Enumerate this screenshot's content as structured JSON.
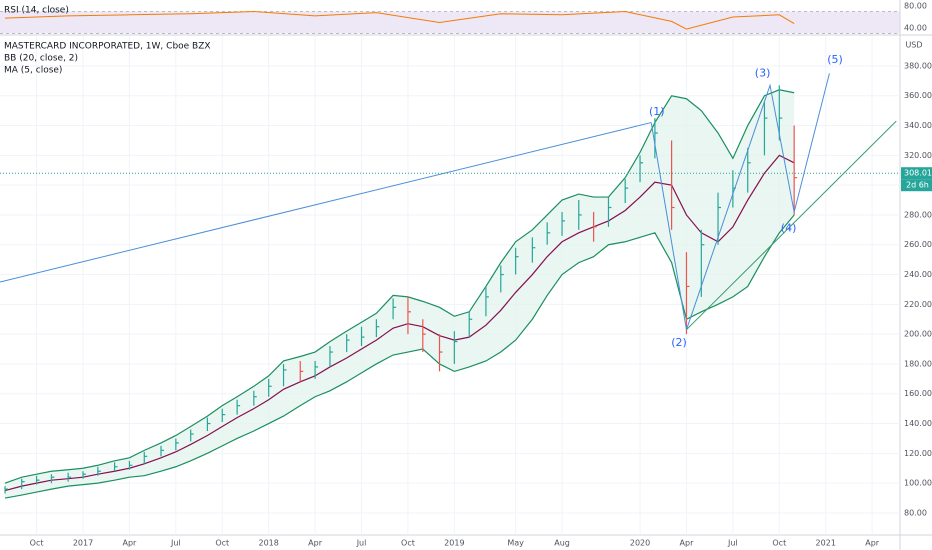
{
  "chart_data": [
    {
      "type": "ohlc",
      "title": "MASTERCARD INCORPORATED, 1W, Cboe BZX",
      "indicators": [
        "BB (20, close, 2)",
        "MA (5, close)"
      ],
      "currency": "USD",
      "x": [
        2016.58,
        2016.67,
        2016.75,
        2016.83,
        2016.92,
        2017.0,
        2017.08,
        2017.17,
        2017.25,
        2017.33,
        2017.42,
        2017.5,
        2017.58,
        2017.67,
        2017.75,
        2017.83,
        2017.92,
        2018.0,
        2018.08,
        2018.17,
        2018.25,
        2018.33,
        2018.42,
        2018.5,
        2018.58,
        2018.67,
        2018.75,
        2018.83,
        2018.92,
        2019.0,
        2019.08,
        2019.17,
        2019.25,
        2019.33,
        2019.42,
        2019.5,
        2019.58,
        2019.67,
        2019.75,
        2019.83,
        2019.92,
        2020.0,
        2020.08,
        2020.17,
        2020.25,
        2020.33,
        2020.42,
        2020.5,
        2020.58,
        2020.67,
        2020.75,
        2020.83
      ],
      "close": [
        96,
        101,
        102,
        104,
        104,
        106,
        108,
        111,
        112,
        118,
        122,
        127,
        133,
        140,
        146,
        152,
        158,
        165,
        176,
        175,
        178,
        188,
        196,
        198,
        205,
        218,
        215,
        200,
        188,
        195,
        210,
        225,
        240,
        252,
        258,
        268,
        276,
        280,
        272,
        285,
        298,
        315,
        335,
        285,
        232,
        260,
        285,
        298,
        315,
        345,
        345,
        305
      ],
      "high": [
        98,
        103,
        105,
        106,
        107,
        108,
        111,
        114,
        115,
        121,
        125,
        130,
        136,
        144,
        150,
        156,
        162,
        170,
        180,
        182,
        182,
        192,
        200,
        205,
        210,
        224,
        225,
        210,
        200,
        202,
        215,
        232,
        246,
        258,
        265,
        275,
        282,
        290,
        282,
        292,
        304,
        320,
        345,
        330,
        255,
        270,
        295,
        310,
        325,
        356,
        367,
        340
      ],
      "low": [
        93,
        96,
        99,
        100,
        101,
        103,
        105,
        108,
        109,
        113,
        118,
        122,
        128,
        135,
        141,
        146,
        152,
        158,
        165,
        168,
        170,
        178,
        188,
        192,
        198,
        210,
        200,
        188,
        175,
        180,
        198,
        212,
        228,
        240,
        248,
        260,
        266,
        270,
        262,
        272,
        288,
        302,
        318,
        270,
        200,
        225,
        260,
        285,
        295,
        320,
        330,
        280
      ],
      "ma": [
        95,
        98,
        100,
        102,
        103,
        104,
        106,
        108,
        110,
        113,
        117,
        121,
        126,
        132,
        138,
        144,
        150,
        156,
        163,
        168,
        172,
        178,
        184,
        190,
        196,
        204,
        207,
        205,
        199,
        196,
        198,
        206,
        216,
        228,
        240,
        252,
        262,
        268,
        272,
        276,
        283,
        292,
        302,
        300,
        280,
        268,
        262,
        272,
        290,
        308,
        320,
        315
      ],
      "bb_upper": [
        100,
        104,
        106,
        108,
        109,
        110,
        112,
        115,
        117,
        122,
        127,
        132,
        138,
        145,
        152,
        158,
        165,
        172,
        182,
        185,
        188,
        195,
        202,
        208,
        214,
        226,
        225,
        222,
        218,
        212,
        215,
        232,
        248,
        262,
        270,
        280,
        290,
        294,
        292,
        292,
        305,
        322,
        342,
        360,
        358,
        350,
        335,
        318,
        340,
        360,
        364,
        362
      ],
      "bb_lower": [
        90,
        92,
        94,
        96,
        98,
        99,
        100,
        102,
        104,
        105,
        108,
        111,
        115,
        120,
        125,
        130,
        135,
        140,
        145,
        152,
        158,
        162,
        168,
        174,
        180,
        186,
        188,
        190,
        180,
        175,
        178,
        182,
        188,
        196,
        210,
        226,
        240,
        248,
        252,
        260,
        262,
        265,
        268,
        248,
        210,
        215,
        220,
        225,
        232,
        252,
        268,
        280
      ],
      "colors": {
        "up": "#26a69a",
        "down": "#ef5350",
        "ma": "#880e4f",
        "bb": "#1b8f5f",
        "bb_fill": "#e3f4ee",
        "drawing": "#4a8fd8",
        "trend": "#2e9b6a"
      },
      "xlim": [
        2016.553,
        2021.4
      ],
      "ylim": [
        65.2,
        400.1
      ],
      "xticks": [
        {
          "value": 2016.75,
          "label": "Oct"
        },
        {
          "value": 2017,
          "label": "2017"
        },
        {
          "value": 2017.25,
          "label": "Apr"
        },
        {
          "value": 2017.5,
          "label": "Jul"
        },
        {
          "value": 2017.75,
          "label": "Oct"
        },
        {
          "value": 2018,
          "label": "2018"
        },
        {
          "value": 2018.25,
          "label": "Apr"
        },
        {
          "value": 2018.5,
          "label": "Jul"
        },
        {
          "value": 2018.75,
          "label": "Oct"
        },
        {
          "value": 2019,
          "label": "2019"
        },
        {
          "value": 2019.33,
          "label": "May"
        },
        {
          "value": 2019.58,
          "label": "Aug"
        },
        {
          "value": 2020,
          "label": "2020"
        },
        {
          "value": 2020.25,
          "label": "Apr"
        },
        {
          "value": 2020.5,
          "label": "Jul"
        },
        {
          "value": 2020.75,
          "label": "Oct"
        },
        {
          "value": 2021,
          "label": "2021"
        },
        {
          "value": 2021.25,
          "label": "Apr"
        }
      ],
      "yticks": [
        {
          "value": 80,
          "label": "80.00"
        },
        {
          "value": 100,
          "label": "100.00"
        },
        {
          "value": 120,
          "label": "120.00"
        },
        {
          "value": 140,
          "label": "140.00"
        },
        {
          "value": 160,
          "label": "160.00"
        },
        {
          "value": 180,
          "label": "180.00"
        },
        {
          "value": 200,
          "label": "200.00"
        },
        {
          "value": 220,
          "label": "220.00"
        },
        {
          "value": 240,
          "label": "240.00"
        },
        {
          "value": 260,
          "label": "260.00"
        },
        {
          "value": 280,
          "label": "280.00"
        },
        {
          "value": 300,
          "label": "300.00"
        },
        {
          "value": 320,
          "label": "320.00"
        },
        {
          "value": 340,
          "label": "340.00"
        },
        {
          "value": 360,
          "label": "360.00"
        },
        {
          "value": 380,
          "label": "380.00"
        }
      ],
      "grid": true,
      "last_price": 308.01,
      "countdown": "2d 6h",
      "lines": [
        {
          "kind": "drawing",
          "x": [
            2016.553,
            2020.06
          ],
          "y": [
            235,
            342
          ]
        },
        {
          "kind": "drawing",
          "x": [
            2020.06,
            2020.25,
            2020.7,
            2020.83,
            2021.02
          ],
          "y": [
            342,
            203,
            367,
            282,
            375
          ]
        },
        {
          "kind": "trend",
          "x": [
            2020.25,
            2021.38
          ],
          "y": [
            203,
            343
          ]
        }
      ],
      "annotations": [
        {
          "text": "(1)",
          "x": 2020.09,
          "y": 349
        },
        {
          "text": "(2)",
          "x": 2020.21,
          "y": 194
        },
        {
          "text": "(3)",
          "x": 2020.66,
          "y": 375
        },
        {
          "text": "(4)",
          "x": 2020.8,
          "y": 271
        },
        {
          "text": "(5)",
          "x": 2021.05,
          "y": 384
        }
      ]
    },
    {
      "type": "rsi",
      "title": "RSI (14, close)",
      "color": "#f57c00",
      "band": [
        30,
        70
      ],
      "band_color": "#ede7f6",
      "x": [
        2016.58,
        2016.92,
        2017.25,
        2017.58,
        2017.92,
        2018.25,
        2018.58,
        2018.92,
        2019.25,
        2019.58,
        2019.92,
        2020.17,
        2020.25,
        2020.5,
        2020.75,
        2020.83
      ],
      "values": [
        58,
        62,
        64,
        66,
        70,
        62,
        68,
        50,
        66,
        64,
        70,
        52,
        38,
        60,
        64,
        48
      ],
      "ylim": [
        29,
        91
      ],
      "yticks": [
        {
          "value": 80,
          "label": "80.00"
        },
        {
          "value": 40,
          "label": "40.00"
        }
      ]
    }
  ]
}
